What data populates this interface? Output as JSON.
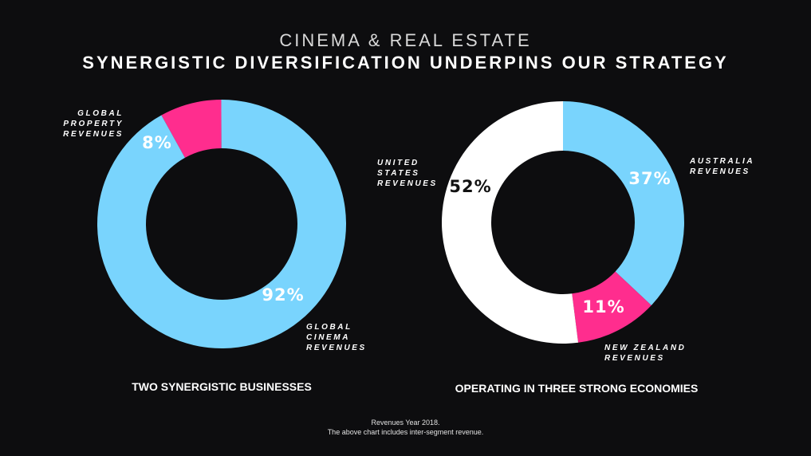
{
  "header": {
    "supertitle": "CINEMA & REAL ESTATE",
    "title": "SYNERGISTIC DIVERSIFICATION UNDERPINS OUR STRATEGY"
  },
  "chart_data": [
    {
      "type": "pie",
      "donut": true,
      "caption": "TWO SYNERGISTIC BUSINESSES",
      "slices": [
        {
          "label": "GLOBAL\nPROPERTY\nREVENUES",
          "value": 8,
          "value_label": "8%",
          "color": "#ff2d8e"
        },
        {
          "label": "GLOBAL\nCINEMA\nREVENUES",
          "value": 92,
          "value_label": "92%",
          "color": "#79d4fd"
        }
      ]
    },
    {
      "type": "pie",
      "donut": true,
      "caption": "OPERATING IN THREE STRONG ECONOMIES",
      "slices": [
        {
          "label": "AUSTRALIA\nREVENUES",
          "value": 37,
          "value_label": "37%",
          "color": "#79d4fd"
        },
        {
          "label": "NEW ZEALAND\nREVENUES",
          "value": 11,
          "value_label": "11%",
          "color": "#ff2d8e"
        },
        {
          "label": "UNITED\nSTATES\nREVENUES",
          "value": 52,
          "value_label": "52%",
          "color": "#ffffff"
        }
      ]
    }
  ],
  "footnote": {
    "line1": "Revenues Year 2018.",
    "line2": "The above chart includes inter-segment revenue."
  }
}
